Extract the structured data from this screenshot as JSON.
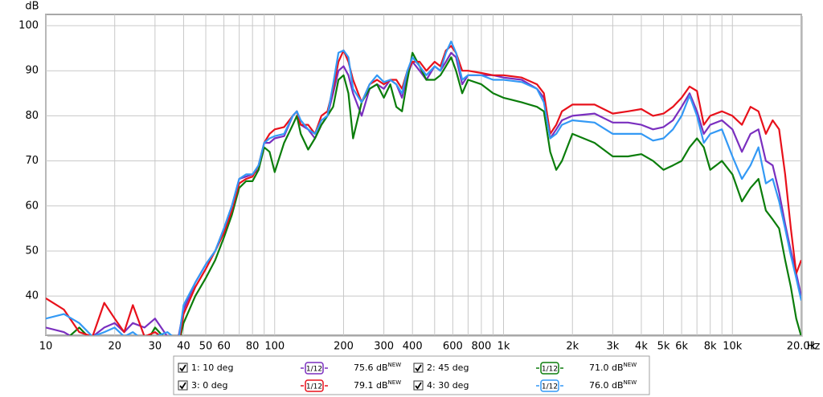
{
  "chart_data": {
    "type": "line",
    "y_unit": "dB",
    "x_unit": "Hz",
    "log_x": true,
    "grid": true,
    "xlim": [
      10,
      20000
    ],
    "ylim": [
      31.3,
      102.5
    ],
    "yticks": [
      40,
      50,
      60,
      70,
      80,
      90,
      100
    ],
    "xticks": [
      10,
      20,
      30,
      40,
      50,
      60,
      80,
      100,
      200,
      300,
      400,
      600,
      800,
      {
        "value": 1000,
        "label": "1k"
      },
      {
        "value": 2000,
        "label": "2k"
      },
      {
        "value": 3000,
        "label": "3k"
      },
      {
        "value": 4000,
        "label": "4k"
      },
      {
        "value": 5000,
        "label": "5k"
      },
      {
        "value": 6000,
        "label": "6k"
      },
      {
        "value": 8000,
        "label": "8k"
      },
      {
        "value": 10000,
        "label": "10k"
      },
      {
        "value": 20000,
        "label": "20.0k"
      }
    ],
    "x_minor_grid": [
      70,
      90,
      500,
      700,
      900,
      7000,
      9000
    ],
    "x": [
      10,
      12,
      14,
      16,
      18,
      20,
      22,
      24,
      27,
      30,
      34,
      38,
      40,
      45,
      50,
      55,
      60,
      65,
      70,
      75,
      80,
      85,
      90,
      95,
      100,
      110,
      120,
      125,
      130,
      140,
      150,
      160,
      170,
      180,
      190,
      200,
      210,
      220,
      240,
      260,
      280,
      300,
      320,
      340,
      360,
      380,
      400,
      430,
      460,
      500,
      530,
      560,
      590,
      620,
      660,
      700,
      800,
      900,
      1000,
      1200,
      1400,
      1500,
      1600,
      1700,
      1800,
      2000,
      2500,
      3000,
      3500,
      4000,
      4500,
      5000,
      5500,
      6000,
      6500,
      7000,
      7500,
      8000,
      9000,
      10000,
      11000,
      12000,
      13000,
      14000,
      15000,
      16000,
      17000,
      18000,
      19000,
      20000
    ],
    "series": [
      {
        "name": "1: 10 deg",
        "color": "#7a2fbf",
        "checked": true,
        "smoothing": "1/12",
        "level_label": "75.6 dB",
        "badge": "NEW",
        "values": [
          33,
          32,
          30,
          31,
          33,
          34,
          32,
          34,
          33,
          35,
          31,
          31,
          37,
          43,
          47,
          50,
          55,
          60,
          66,
          66.5,
          67,
          68,
          74,
          74,
          75,
          75.5,
          80,
          81,
          78,
          77,
          75,
          78,
          80,
          85,
          90,
          91,
          89,
          85,
          80,
          86,
          87,
          86,
          88,
          87,
          84,
          89,
          92,
          90,
          88,
          91,
          90,
          92,
          94,
          93,
          87,
          89,
          89,
          89,
          88.5,
          88,
          86,
          84,
          75,
          77,
          79,
          80,
          80.5,
          78.5,
          78.5,
          78,
          77,
          77.5,
          79,
          82,
          85,
          81,
          76,
          78,
          79,
          77,
          72,
          76,
          77,
          70,
          69,
          63,
          56,
          50,
          45,
          40
        ]
      },
      {
        "name": "2: 45 deg",
        "color": "#0b7d0b",
        "checked": true,
        "smoothing": "1/12",
        "level_label": "71.0 dB",
        "badge": "NEW",
        "values": [
          31,
          30,
          33,
          30,
          29,
          30,
          29,
          30,
          29,
          33,
          30,
          29,
          34,
          40,
          44,
          48,
          53,
          58,
          64,
          65.5,
          65.5,
          68,
          73,
          72,
          67.5,
          74,
          78,
          80,
          76,
          72.5,
          75,
          78,
          80,
          82,
          88,
          89,
          85,
          75,
          83,
          86,
          87,
          84,
          87,
          82,
          81,
          88,
          94,
          91,
          88,
          88,
          89,
          91,
          93,
          90,
          85,
          88,
          87,
          85,
          84,
          83,
          82,
          81,
          72,
          68,
          70,
          76,
          74,
          71,
          71,
          71.5,
          70,
          68,
          69,
          70,
          73,
          75,
          73,
          68,
          70,
          67,
          61,
          64,
          66,
          59,
          57,
          55,
          48,
          42,
          35,
          31
        ]
      },
      {
        "name": "3: 0 deg",
        "color": "#e8111b",
        "checked": true,
        "smoothing": "1/12",
        "level_label": "79.1 dB",
        "badge": "NEW",
        "values": [
          39.5,
          37,
          32,
          31,
          38.5,
          35,
          32,
          38,
          31,
          32,
          30,
          29,
          36,
          42,
          46,
          50,
          54,
          59,
          65,
          66,
          66.5,
          69,
          74,
          76,
          77,
          77.5,
          80,
          81,
          78,
          78,
          76,
          80,
          81,
          86,
          92,
          94.5,
          92,
          88,
          83,
          87,
          88,
          87,
          88,
          88,
          86,
          90,
          92,
          92,
          90,
          92,
          91,
          94.5,
          95.5,
          94,
          90,
          90,
          89.5,
          89,
          89,
          88.5,
          87,
          85,
          76,
          78,
          81,
          82.5,
          82.5,
          80.5,
          81,
          81.5,
          80,
          80.5,
          82,
          84,
          86.5,
          85.5,
          78,
          80,
          81,
          80,
          78,
          82,
          81,
          76,
          79,
          77,
          67,
          55,
          45,
          48
        ]
      },
      {
        "name": "4: 30 deg",
        "color": "#3399f5",
        "checked": true,
        "smoothing": "1/12",
        "level_label": "76.0 dB",
        "badge": "NEW",
        "values": [
          35,
          36,
          34,
          31,
          32,
          33,
          31,
          32,
          30,
          31,
          32,
          30,
          38,
          43,
          47,
          50,
          55,
          60,
          66,
          67,
          67,
          69,
          74,
          75,
          75.5,
          76,
          80,
          81,
          79,
          77,
          76,
          79,
          80,
          87,
          94,
          94.5,
          93,
          86,
          83,
          87,
          89,
          87.5,
          88,
          87,
          85,
          90,
          93,
          91,
          89,
          91,
          90,
          94,
          96.5,
          94,
          88,
          89,
          89,
          88,
          88,
          87.5,
          86,
          83,
          75,
          76,
          78,
          79,
          78.5,
          76,
          76,
          76,
          74.5,
          75,
          77,
          80,
          84.5,
          80,
          74,
          76,
          77,
          71,
          66,
          69,
          73,
          65,
          66,
          61,
          55,
          49,
          44,
          39
        ]
      }
    ]
  }
}
